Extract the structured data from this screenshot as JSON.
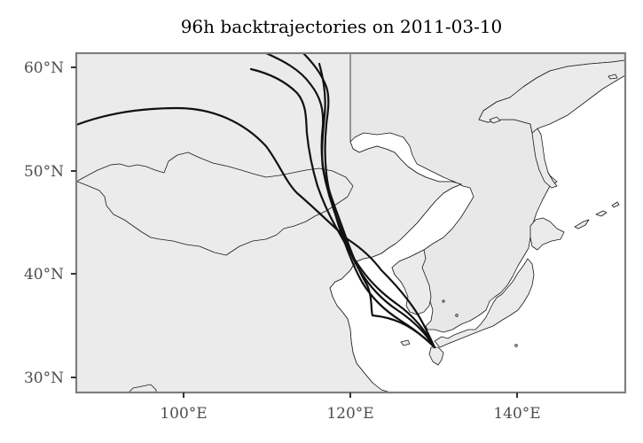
{
  "map": {
    "title": "96h backtrajectories on 2011-03-10",
    "y_ticks": [
      "60°N",
      "50°N",
      "40°N",
      "30°N"
    ],
    "x_ticks": [
      "100°E",
      "120°E",
      "140°E"
    ],
    "trajectory_count": 5
  },
  "colors": {
    "background": "#e8e8e8",
    "land": "#ffffff",
    "trajectory": "#111111",
    "frame": "#7f7f7f"
  }
}
